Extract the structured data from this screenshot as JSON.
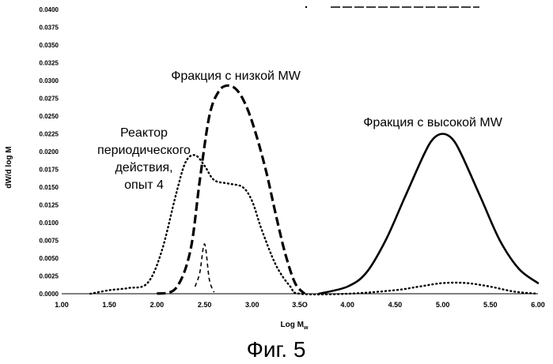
{
  "chart_data": {
    "type": "line",
    "title": "",
    "xlabel": "Log M",
    "xlabel_subscript": "w",
    "ylabel": "dW/d log M",
    "xlim": [
      1.0,
      6.0
    ],
    "ylim": [
      0.0,
      0.04
    ],
    "x_ticks": [
      "1.00",
      "1.50",
      "2.00",
      "2.50",
      "3.00",
      "3.5O",
      "4.00",
      "4.50",
      "5.00",
      "5.50",
      "6.00"
    ],
    "y_ticks": [
      "0.0000",
      "0.0025",
      "0.0050",
      "0.0075",
      "0.0100",
      "0.0125",
      "0.0150",
      "0.0175",
      "0.0200",
      "0.0225",
      "0.0250",
      "0.0275",
      "0.0300",
      "0.0325",
      "0.0350",
      "0.0375",
      "0.0400"
    ],
    "series": [
      {
        "name": "Фракция с низкой MW",
        "style": "dashed-thick",
        "x": [
          2.0,
          2.2,
          2.35,
          2.45,
          2.55,
          2.65,
          2.75,
          2.85,
          2.95,
          3.05,
          3.15,
          3.25,
          3.35,
          3.45,
          3.55
        ],
        "y": [
          0.0,
          0.0008,
          0.006,
          0.016,
          0.025,
          0.0285,
          0.0293,
          0.0285,
          0.026,
          0.022,
          0.017,
          0.011,
          0.0055,
          0.0015,
          0.0
        ]
      },
      {
        "name": "Реактор периодического действия, опыт 4",
        "style": "dotted",
        "x": [
          1.3,
          1.5,
          1.7,
          1.9,
          2.05,
          2.2,
          2.3,
          2.4,
          2.5,
          2.6,
          2.75,
          2.9,
          3.0,
          3.1,
          3.25,
          3.4,
          3.5,
          4.0,
          4.5,
          4.75,
          5.0,
          5.25,
          5.5,
          5.75,
          6.0
        ],
        "y": [
          0.0,
          0.0005,
          0.0008,
          0.0015,
          0.006,
          0.014,
          0.0185,
          0.0195,
          0.018,
          0.016,
          0.0155,
          0.015,
          0.013,
          0.009,
          0.004,
          0.001,
          0.0,
          0.0,
          0.0005,
          0.001,
          0.0015,
          0.0015,
          0.001,
          0.0003,
          0.0
        ]
      },
      {
        "name": "Фракция с высокой MW",
        "style": "solid",
        "x": [
          3.7,
          4.0,
          4.2,
          4.4,
          4.6,
          4.8,
          4.9,
          5.0,
          5.1,
          5.2,
          5.4,
          5.6,
          5.8,
          6.0
        ],
        "y": [
          0.0,
          0.001,
          0.003,
          0.0075,
          0.0135,
          0.0195,
          0.0218,
          0.0225,
          0.0218,
          0.0195,
          0.0135,
          0.0075,
          0.0035,
          0.0015
        ]
      },
      {
        "name": "",
        "style": "dashed-thin",
        "x": [
          2.4,
          2.45,
          2.5,
          2.55,
          2.6
        ],
        "y": [
          0.001,
          0.003,
          0.007,
          0.002,
          0.0002
        ]
      }
    ],
    "annotations": {
      "low": "Фракция с низкой MW",
      "high": "Фракция с высокой MW",
      "batch_line1": "Реактор",
      "batch_line2": "периодического",
      "batch_line3": "действия,",
      "batch_line4": "опыт 4"
    }
  },
  "caption": "Фиг. 5"
}
